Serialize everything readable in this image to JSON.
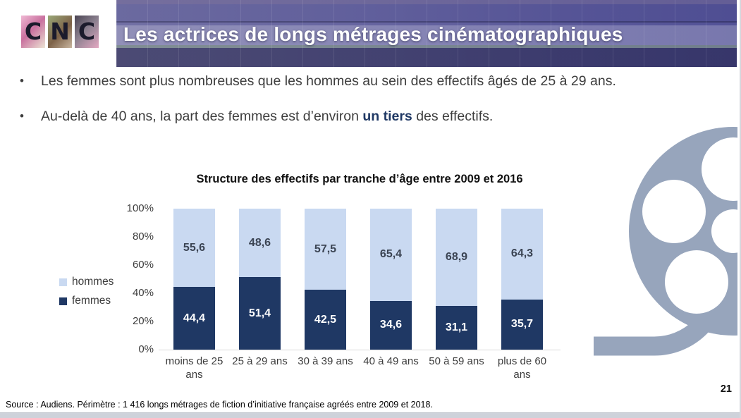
{
  "logo": {
    "letters": [
      "C",
      "N",
      "C"
    ]
  },
  "header": {
    "title": "Les actrices de longs métrages cinématographiques"
  },
  "bullets": [
    {
      "pre": "Les femmes sont plus nombreuses que les hommes au sein des effectifs âgés de 25 à 29 ans.",
      "bold": "",
      "post": ""
    },
    {
      "pre": "Au-delà de 40 ans, la part des femmes est d’environ ",
      "bold": "un tiers",
      "post": " des effectifs."
    }
  ],
  "chart_data": {
    "type": "bar",
    "stacked": true,
    "title": "Structure des effectifs par tranche d’âge entre 2009 et 2016",
    "categories": [
      "moins de 25 ans",
      "25 à 29 ans",
      "30 à 39 ans",
      "40 à 49 ans",
      "50 à 59 ans",
      "plus de 60 ans"
    ],
    "series": [
      {
        "name": "femmes",
        "color": "#1f3864",
        "label_color": "#ffffff",
        "values": [
          44.4,
          51.4,
          42.5,
          34.6,
          31.1,
          35.7
        ],
        "labels": [
          "44,4",
          "51,4",
          "42,5",
          "34,6",
          "31,1",
          "35,7"
        ]
      },
      {
        "name": "hommes",
        "color": "#c9d9f1",
        "label_color": "#3b4453",
        "values": [
          55.6,
          48.6,
          57.5,
          65.4,
          68.9,
          64.3
        ],
        "labels": [
          "55,6",
          "48,6",
          "57,5",
          "65,4",
          "68,9",
          "64,3"
        ]
      }
    ],
    "legend": [
      {
        "label": "hommes",
        "color": "#c9d9f1"
      },
      {
        "label": "femmes",
        "color": "#1f3864"
      }
    ],
    "yticks": [
      "100%",
      "80%",
      "60%",
      "40%",
      "20%",
      "0%"
    ],
    "ylim": [
      0,
      100
    ],
    "grid": false,
    "legend_position": "left",
    "axis_color": "#d9d9d9"
  },
  "footer": {
    "source": "Source : Audiens. Périmètre : 1 416 longs métrages de fiction d’initiative française agréés entre 2009 et 2018."
  },
  "page": {
    "number": "21"
  },
  "icons": {
    "film_reel_color": "#97a5bc"
  }
}
